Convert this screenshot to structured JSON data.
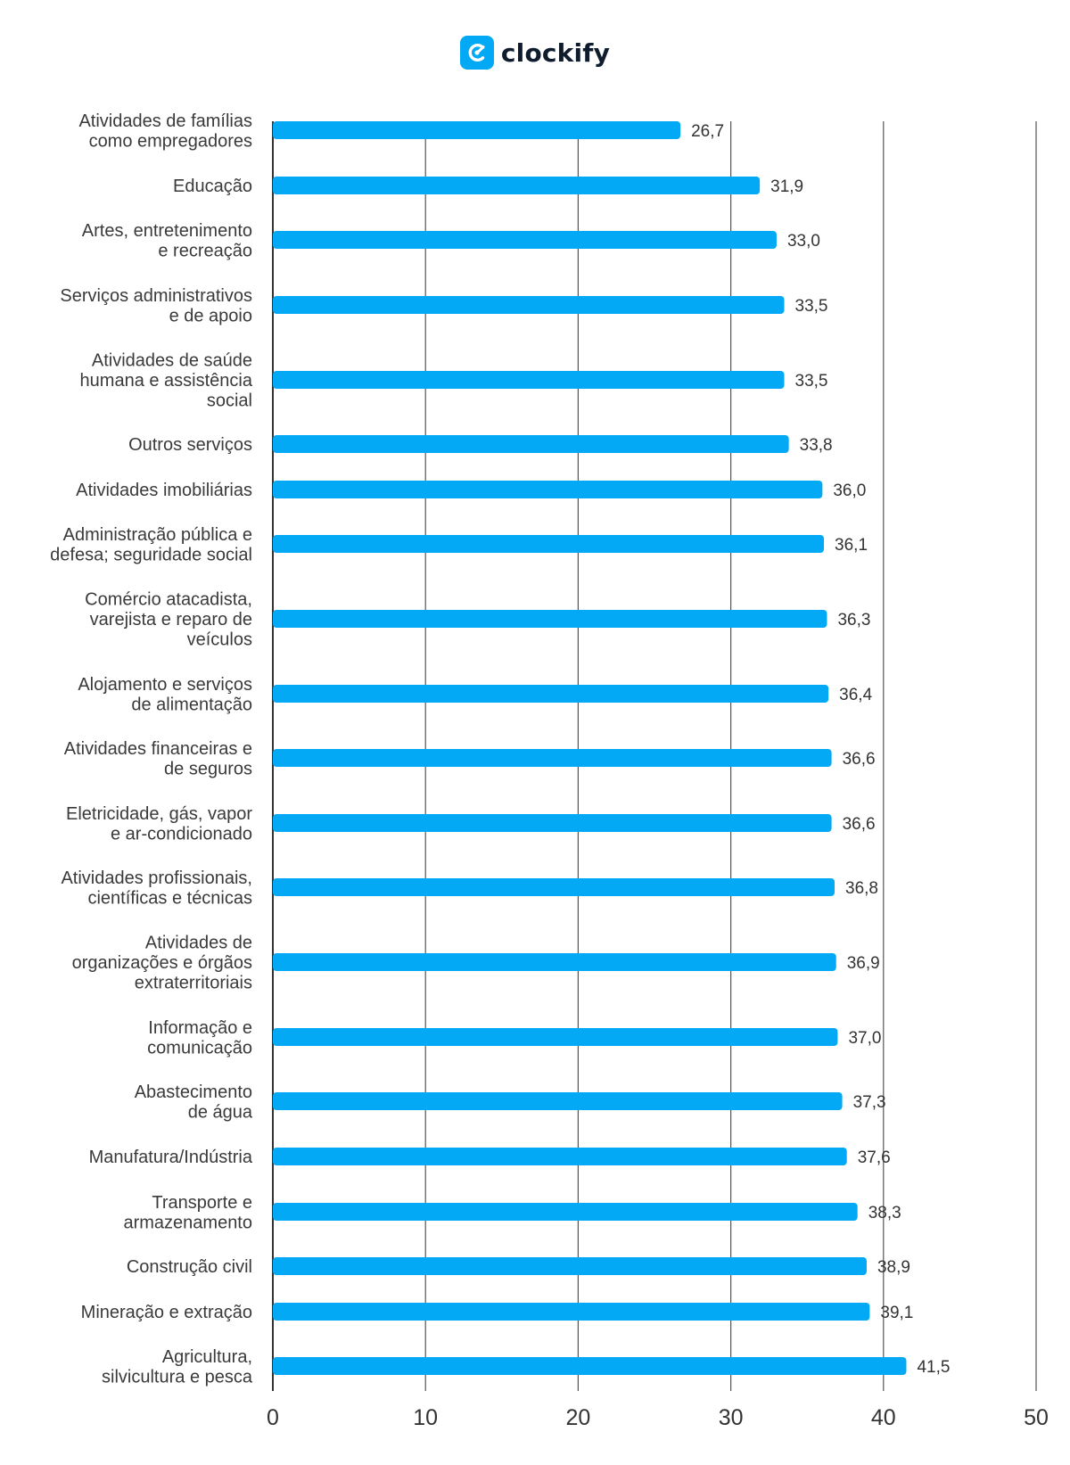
{
  "brand": {
    "name": "clockify",
    "logo_icon": "clockify-logo-icon"
  },
  "colors": {
    "bar": "#03a9f4",
    "grid": "#555555",
    "text": "#333333"
  },
  "chart_data": {
    "type": "bar",
    "orientation": "horizontal",
    "categories": [
      [
        "Atividades de famílias",
        "como empregadores"
      ],
      [
        "Educação"
      ],
      [
        "Artes, entretenimento",
        "e recreação"
      ],
      [
        "Serviços administrativos",
        "e de apoio"
      ],
      [
        "Atividades de saúde",
        "humana e assistência",
        "social"
      ],
      [
        "Outros serviços"
      ],
      [
        "Atividades imobiliárias"
      ],
      [
        "Administração pública e",
        "defesa; seguridade social"
      ],
      [
        "Comércio atacadista,",
        "varejista e reparo de",
        "veículos"
      ],
      [
        "Alojamento e serviços",
        "de alimentação"
      ],
      [
        "Atividades financeiras e",
        "de seguros"
      ],
      [
        "Eletricidade, gás, vapor",
        "e ar-condicionado"
      ],
      [
        "Atividades profissionais,",
        "científicas e técnicas"
      ],
      [
        "Atividades de",
        "organizações e órgãos",
        "extraterritoriais"
      ],
      [
        "Informação e",
        "comunicação"
      ],
      [
        "Abastecimento",
        "de água"
      ],
      [
        "Manufatura/Indústria"
      ],
      [
        "Transporte e",
        "armazenamento"
      ],
      [
        "Construção civil"
      ],
      [
        "Mineração e extração"
      ],
      [
        "Agricultura,",
        "silvicultura e pesca"
      ]
    ],
    "values": [
      26.7,
      31.9,
      33.0,
      33.5,
      33.5,
      33.8,
      36.0,
      36.1,
      36.3,
      36.4,
      36.6,
      36.6,
      36.8,
      36.9,
      37.0,
      37.3,
      37.6,
      38.3,
      38.9,
      39.1,
      41.5
    ],
    "value_labels": [
      "26,7",
      "31,9",
      "33,0",
      "33,5",
      "33,5",
      "33,8",
      "36,0",
      "36,1",
      "36,3",
      "36,4",
      "36,6",
      "36,6",
      "36,8",
      "36,9",
      "37,0",
      "37,3",
      "37,6",
      "38,3",
      "38,9",
      "39,1",
      "41,5"
    ],
    "xlim": [
      0,
      50
    ],
    "xticks": [
      0,
      10,
      20,
      30,
      40,
      50
    ],
    "grid": true,
    "legend": "none",
    "title": "",
    "xlabel": "",
    "ylabel": ""
  }
}
